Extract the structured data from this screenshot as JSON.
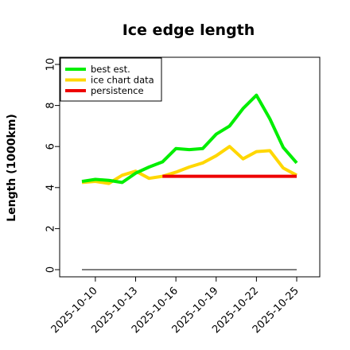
{
  "chart_data": {
    "type": "line",
    "title": "Ice edge length",
    "xlabel": "",
    "ylabel": "Length (1000km)",
    "ylim": [
      0,
      10
    ],
    "xlim": [
      "2025-10-08",
      "2025-10-25"
    ],
    "grid": false,
    "legend_position": "top-left",
    "x_ticks": [
      "2025-10-10",
      "2025-10-13",
      "2025-10-16",
      "2025-10-19",
      "2025-10-22",
      "2025-10-25"
    ],
    "y_ticks": [
      0,
      2,
      4,
      6,
      8,
      10
    ],
    "x": [
      "2025-10-09",
      "2025-10-10",
      "2025-10-11",
      "2025-10-12",
      "2025-10-13",
      "2025-10-14",
      "2025-10-15",
      "2025-10-16",
      "2025-10-17",
      "2025-10-18",
      "2025-10-19",
      "2025-10-20",
      "2025-10-21",
      "2025-10-22",
      "2025-10-23",
      "2025-10-24",
      "2025-10-25"
    ],
    "series": [
      {
        "name": "best est.",
        "color": "#00ee00",
        "x": [
          "2025-10-09",
          "2025-10-10",
          "2025-10-11",
          "2025-10-12",
          "2025-10-13",
          "2025-10-14",
          "2025-10-15",
          "2025-10-16",
          "2025-10-17",
          "2025-10-18",
          "2025-10-19",
          "2025-10-20",
          "2025-10-21",
          "2025-10-22",
          "2025-10-23",
          "2025-10-24",
          "2025-10-25"
        ],
        "values": [
          4.3,
          4.4,
          4.35,
          4.25,
          4.7,
          5.0,
          5.25,
          5.9,
          5.85,
          5.9,
          6.6,
          7.0,
          7.85,
          8.5,
          7.35,
          5.95,
          5.2
        ]
      },
      {
        "name": "ice chart data",
        "color": "#ffd700",
        "x": [
          "2025-10-09",
          "2025-10-10",
          "2025-10-11",
          "2025-10-12",
          "2025-10-13",
          "2025-10-14",
          "2025-10-15",
          "2025-10-16",
          "2025-10-17",
          "2025-10-18",
          "2025-10-19",
          "2025-10-20",
          "2025-10-21",
          "2025-10-22",
          "2025-10-23",
          "2025-10-24",
          "2025-10-25"
        ],
        "values": [
          4.25,
          4.3,
          4.2,
          4.6,
          4.8,
          4.45,
          4.55,
          4.75,
          5.0,
          5.2,
          5.55,
          6.0,
          5.4,
          5.75,
          5.8,
          4.95,
          4.6
        ]
      },
      {
        "name": "persistence",
        "color": "#ee0000",
        "x": [
          "2025-10-15",
          "2025-10-25"
        ],
        "values": [
          4.55,
          4.55
        ]
      }
    ],
    "baseline": {
      "value": 0,
      "color": "#555555",
      "x": [
        "2025-10-09",
        "2025-10-25"
      ]
    }
  }
}
